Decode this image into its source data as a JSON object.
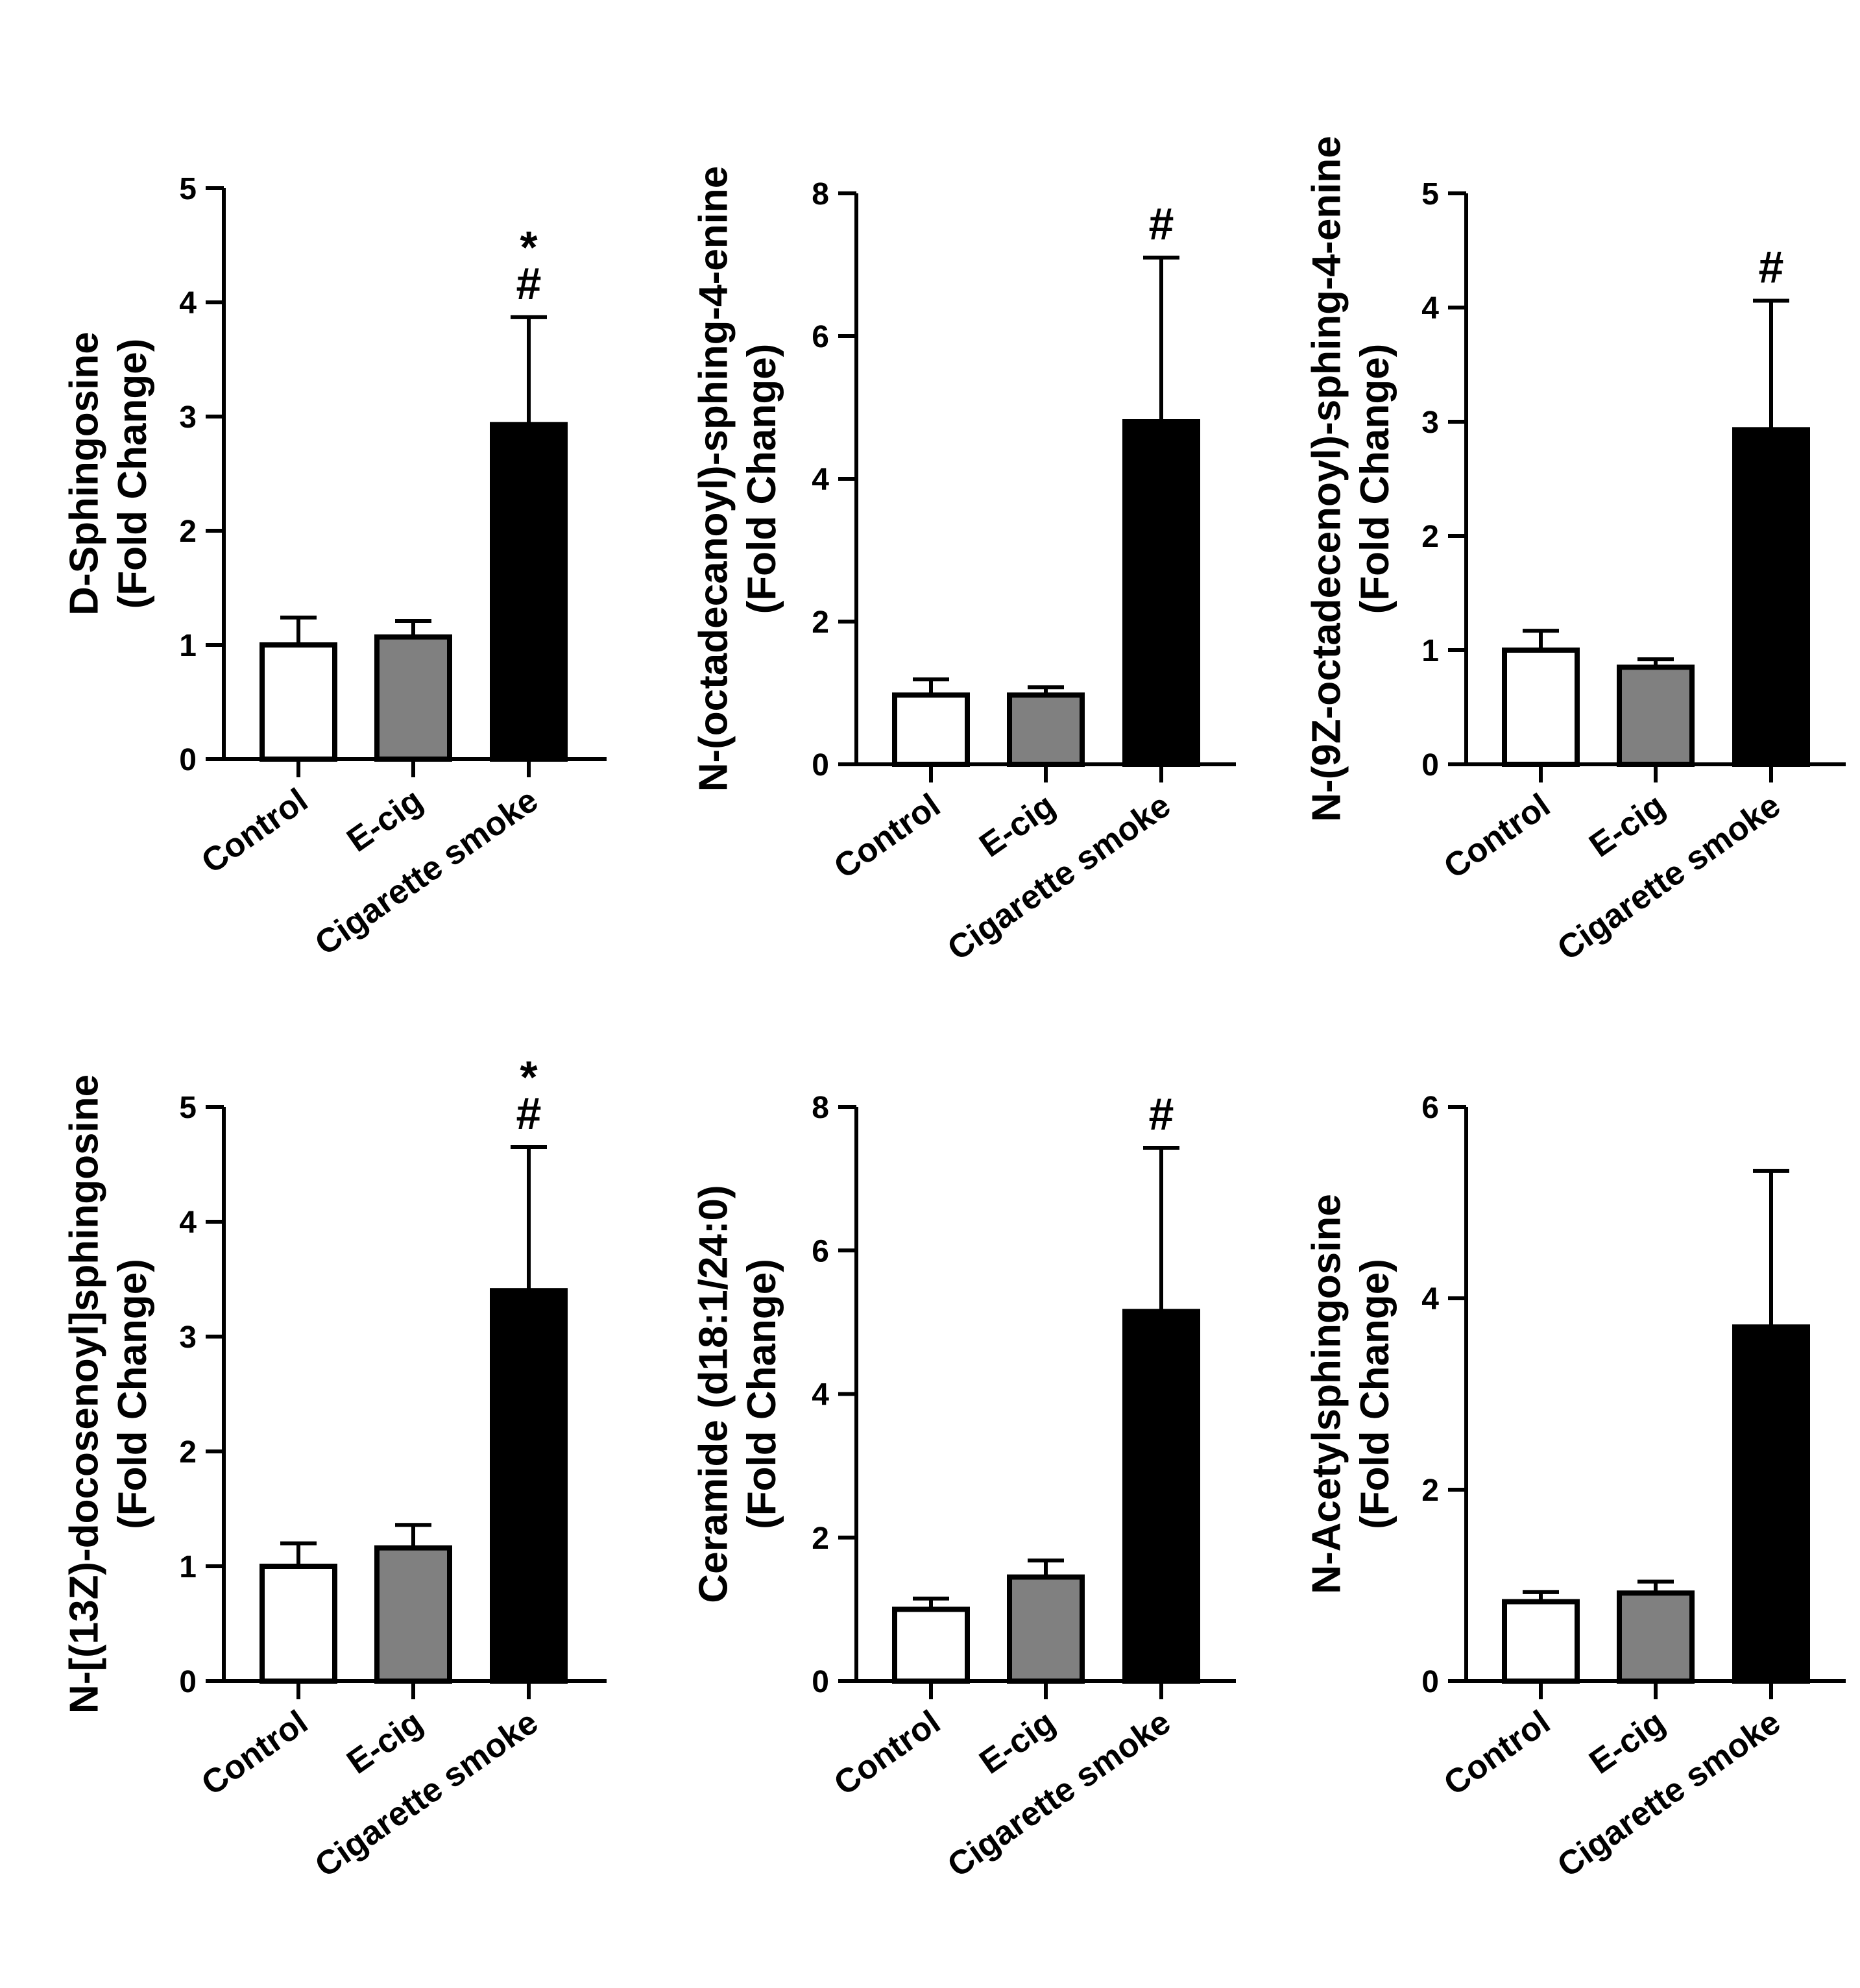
{
  "figure": {
    "panel_count": 6,
    "colors": {
      "Control": "#ffffff",
      "E-cig": "#808080",
      "Cigarette smoke": "#000000",
      "stroke": "#000000"
    }
  },
  "chart_data": [
    {
      "type": "bar",
      "title": "",
      "ylabel_lines": [
        "D-Sphingosine",
        "(Fold Change)"
      ],
      "categories": [
        "Control",
        "E-cig",
        "Cigarette smoke"
      ],
      "values": [
        1.0,
        1.07,
        2.93
      ],
      "errors": [
        0.24,
        0.14,
        0.94
      ],
      "ylim": [
        0,
        5
      ],
      "yticks": [
        0,
        1,
        2,
        3,
        4,
        5
      ],
      "annotations": [
        {
          "category": "Cigarette smoke",
          "lines": [
            "*",
            "#"
          ]
        }
      ]
    },
    {
      "type": "bar",
      "title": "",
      "ylabel_lines": [
        "N-(octadecanoyl)-sphing-4-enine",
        "(Fold Change)"
      ],
      "categories": [
        "Control",
        "E-cig",
        "Cigarette smoke"
      ],
      "values": [
        0.97,
        0.97,
        4.8
      ],
      "errors": [
        0.22,
        0.11,
        2.3
      ],
      "ylim": [
        0,
        8
      ],
      "yticks": [
        0,
        2,
        4,
        6,
        8
      ],
      "annotations": [
        {
          "category": "Cigarette smoke",
          "lines": [
            "#"
          ]
        }
      ]
    },
    {
      "type": "bar",
      "title": "",
      "ylabel_lines": [
        "N-(9Z-octadecenoyl)-sphing-4-enine",
        "(Fold Change)"
      ],
      "categories": [
        "Control",
        "E-cig",
        "Cigarette smoke"
      ],
      "values": [
        1.0,
        0.85,
        2.93
      ],
      "errors": [
        0.17,
        0.07,
        1.13
      ],
      "ylim": [
        0,
        5
      ],
      "yticks": [
        0,
        1,
        2,
        3,
        4,
        5
      ],
      "annotations": [
        {
          "category": "Cigarette smoke",
          "lines": [
            "#"
          ]
        }
      ]
    },
    {
      "type": "bar",
      "title": "",
      "ylabel_lines": [
        "N-[(13Z)-docosenoyl]sphingosine",
        "(Fold Change)"
      ],
      "categories": [
        "Control",
        "E-cig",
        "Cigarette smoke"
      ],
      "values": [
        1.0,
        1.16,
        3.4
      ],
      "errors": [
        0.2,
        0.2,
        1.25
      ],
      "ylim": [
        0,
        5
      ],
      "yticks": [
        0,
        1,
        2,
        3,
        4,
        5
      ],
      "annotations": [
        {
          "category": "Cigarette smoke",
          "lines": [
            "*",
            "#"
          ]
        }
      ]
    },
    {
      "type": "bar",
      "title": "",
      "ylabel_lines": [
        "Ceramide (d18:1/24:0)",
        "(Fold Change)"
      ],
      "categories": [
        "Control",
        "E-cig",
        "Cigarette smoke"
      ],
      "values": [
        1.0,
        1.45,
        5.15
      ],
      "errors": [
        0.15,
        0.23,
        2.28
      ],
      "ylim": [
        0,
        8
      ],
      "yticks": [
        0,
        2,
        4,
        6,
        8
      ],
      "annotations": [
        {
          "category": "Cigarette smoke",
          "lines": [
            "#"
          ]
        }
      ]
    },
    {
      "type": "bar",
      "title": "",
      "ylabel_lines": [
        "N-Acetylsphingosine",
        "(Fold Change)"
      ],
      "categories": [
        "Control",
        "E-cig",
        "Cigarette smoke"
      ],
      "values": [
        0.83,
        0.92,
        3.7
      ],
      "errors": [
        0.1,
        0.12,
        1.63
      ],
      "ylim": [
        0,
        6
      ],
      "yticks": [
        0,
        2,
        4,
        6
      ],
      "annotations": []
    }
  ]
}
